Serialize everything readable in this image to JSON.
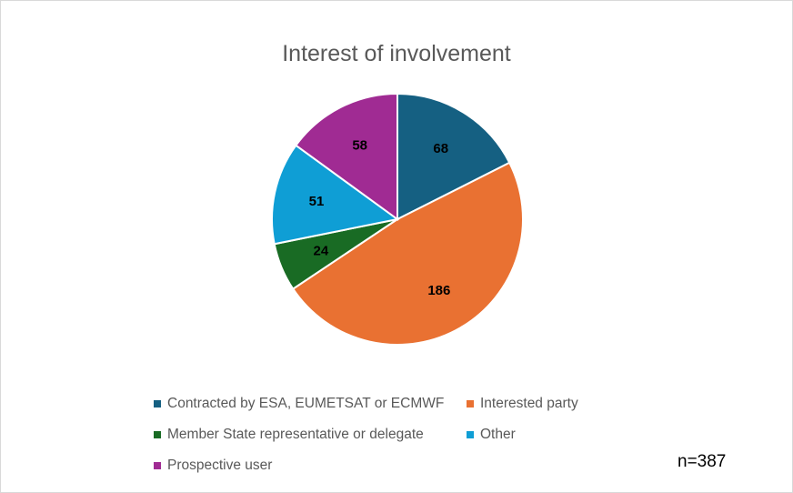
{
  "chart_data": {
    "type": "pie",
    "title": "Interest of involvement",
    "note": "n=387",
    "slices": [
      {
        "label": "Contracted by ESA, EUMETSAT or ECMWF",
        "value": 68,
        "color": "#156082"
      },
      {
        "label": "Interested party",
        "value": 186,
        "color": "#E97132"
      },
      {
        "label": "Member State representative or delegate",
        "value": 24,
        "color": "#196B24"
      },
      {
        "label": "Other",
        "value": 51,
        "color": "#0F9ED5"
      },
      {
        "label": "Prospective user",
        "value": 58,
        "color": "#A02B93"
      }
    ],
    "legend": {
      "position": "bottom"
    },
    "data_labels": true
  }
}
